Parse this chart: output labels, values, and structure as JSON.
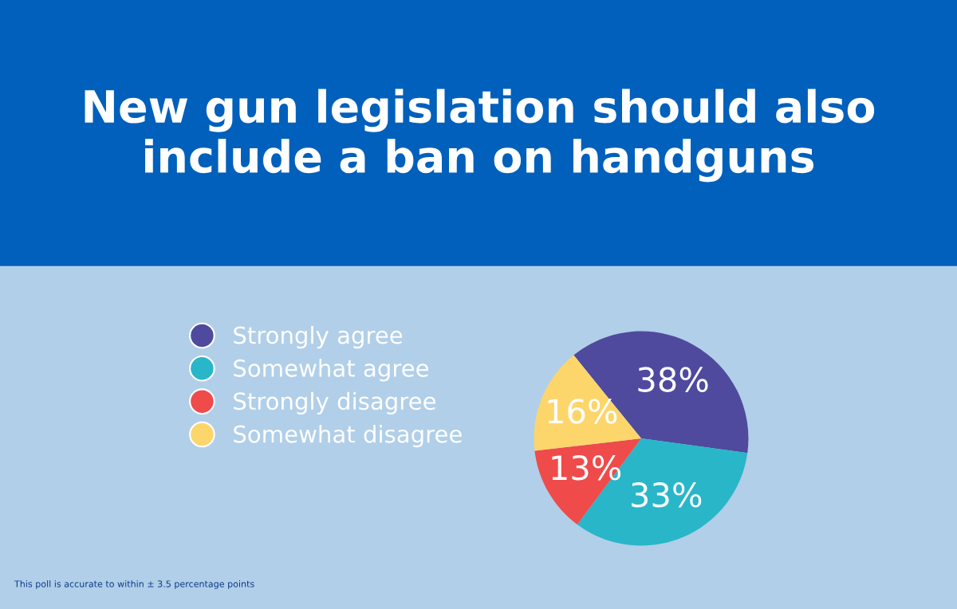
{
  "chart_data": {
    "type": "pie",
    "title": "New gun legislation should also\ninclude a ban on handguns",
    "categories": [
      "Strongly agree",
      "Somewhat agree",
      "Strongly disagree",
      "Somewhat disagree"
    ],
    "values": [
      38,
      33,
      13,
      16
    ],
    "colors": [
      "#4f4a9e",
      "#29b6c9",
      "#ef4b4b",
      "#fcd66b"
    ],
    "value_labels": [
      "38%",
      "33%",
      "13%",
      "16%"
    ],
    "legend": "left",
    "annotations": [
      "This poll is accurate to within ± 3.5 percentage points"
    ]
  }
}
